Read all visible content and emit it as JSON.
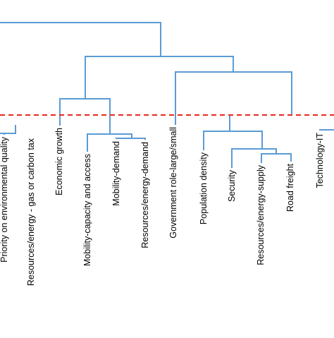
{
  "diagram": {
    "type": "dendrogram",
    "branch_color": "#5b9bd5",
    "cut_line_color": "#e8322a",
    "label_color": "#000000",
    "leaves": [
      "Priority on environmental quality",
      "Resources/energy - gas or carbon tax",
      "Economic growth",
      "Mobility-capacity and access",
      "Mobility-demand",
      "Resources/energy-demand",
      "Government role-large/small",
      "Population density",
      "Security",
      "Resources/energy-supply",
      "Road freight",
      "Technology-IT"
    ]
  }
}
